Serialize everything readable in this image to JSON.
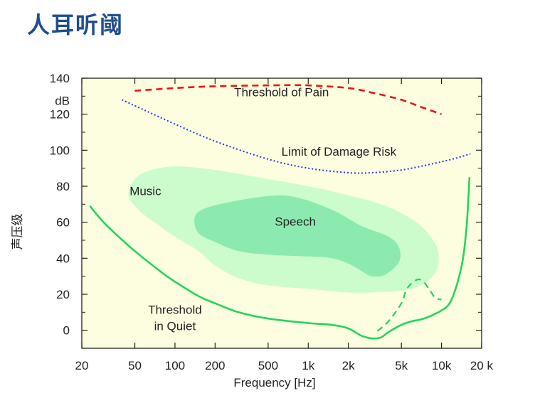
{
  "page": {
    "title": "人耳听阈"
  },
  "chart_data": {
    "type": "area",
    "title": "",
    "xlabel": "Frequency [Hz]",
    "ylabel": "声压级",
    "yunit": "dB",
    "xscale": "log",
    "xlim": [
      20,
      20000
    ],
    "ylim": [
      -10,
      140
    ],
    "x_ticks": [
      {
        "value": 20,
        "label": "20"
      },
      {
        "value": 50,
        "label": "50"
      },
      {
        "value": 100,
        "label": "100"
      },
      {
        "value": 200,
        "label": "200"
      },
      {
        "value": 500,
        "label": "500"
      },
      {
        "value": 1000,
        "label": "1k"
      },
      {
        "value": 2000,
        "label": "2k"
      },
      {
        "value": 5000,
        "label": "5k"
      },
      {
        "value": 10000,
        "label": "10k"
      },
      {
        "value": 20000,
        "label": "20 k"
      }
    ],
    "y_ticks": [
      {
        "value": 0,
        "label": "0"
      },
      {
        "value": 20,
        "label": "20"
      },
      {
        "value": 40,
        "label": "40"
      },
      {
        "value": 60,
        "label": "60"
      },
      {
        "value": 80,
        "label": "80"
      },
      {
        "value": 100,
        "label": "100"
      },
      {
        "value": 120,
        "label": "120"
      },
      {
        "value": 140,
        "label": "140"
      }
    ],
    "background": "#fdfde0",
    "series": [
      {
        "name": "Threshold of Pain",
        "style": "dashed",
        "color": "#e8141c",
        "label_at": [
          630,
          130
        ],
        "points": [
          [
            50,
            133
          ],
          [
            100,
            134.5
          ],
          [
            200,
            135.5
          ],
          [
            500,
            136
          ],
          [
            1000,
            136
          ],
          [
            2000,
            134.5
          ],
          [
            3000,
            132
          ],
          [
            5000,
            128
          ],
          [
            7000,
            124
          ],
          [
            10000,
            120
          ]
        ]
      },
      {
        "name": "Limit of Damage Risk",
        "style": "dotted",
        "color": "#1c3ce8",
        "label_at": [
          1700,
          97
        ],
        "points": [
          [
            40,
            128
          ],
          [
            60,
            122
          ],
          [
            100,
            114.5
          ],
          [
            200,
            105
          ],
          [
            500,
            95
          ],
          [
            1000,
            90
          ],
          [
            2000,
            87.5
          ],
          [
            3000,
            87.5
          ],
          [
            5000,
            89
          ],
          [
            8000,
            92
          ],
          [
            12000,
            95
          ],
          [
            16500,
            98
          ]
        ]
      },
      {
        "name": "Threshold in Quiet",
        "style": "solid",
        "color": "#22d460",
        "label_at": [
          100,
          10
        ],
        "points": [
          [
            23,
            69
          ],
          [
            30,
            59
          ],
          [
            50,
            44
          ],
          [
            80,
            32
          ],
          [
            100,
            27
          ],
          [
            150,
            19
          ],
          [
            200,
            15
          ],
          [
            300,
            10
          ],
          [
            500,
            6.5
          ],
          [
            1000,
            4
          ],
          [
            1500,
            3
          ],
          [
            2000,
            1
          ],
          [
            2500,
            -3
          ],
          [
            3000,
            -4.5
          ],
          [
            3500,
            -4
          ],
          [
            4000,
            -1
          ],
          [
            5000,
            3
          ],
          [
            6000,
            5
          ],
          [
            7000,
            6
          ],
          [
            8000,
            7.5
          ],
          [
            10000,
            11
          ],
          [
            11500,
            15
          ],
          [
            13000,
            25
          ],
          [
            14500,
            40
          ],
          [
            15500,
            60
          ],
          [
            16200,
            85
          ]
        ]
      },
      {
        "name": "",
        "style": "dashed",
        "color": "#22d460",
        "points": [
          [
            3300,
            -0.5
          ],
          [
            4000,
            5
          ],
          [
            5000,
            15
          ],
          [
            5500,
            23
          ],
          [
            6500,
            28
          ],
          [
            7300,
            27
          ],
          [
            8200,
            22
          ],
          [
            9000,
            18
          ],
          [
            10000,
            17
          ]
        ]
      }
    ],
    "regions": [
      {
        "name": "Music",
        "color": "#ccfccc",
        "label_at": [
          60,
          75
        ],
        "points": [
          [
            45,
            74
          ],
          [
            48,
            82
          ],
          [
            60,
            88
          ],
          [
            100,
            91
          ],
          [
            200,
            89
          ],
          [
            500,
            84
          ],
          [
            1000,
            80
          ],
          [
            2000,
            75
          ],
          [
            3500,
            70
          ],
          [
            5000,
            65
          ],
          [
            7000,
            58
          ],
          [
            9000,
            48
          ],
          [
            9500,
            40
          ],
          [
            9000,
            32
          ],
          [
            7000,
            25
          ],
          [
            5000,
            22
          ],
          [
            3000,
            21
          ],
          [
            2000,
            21
          ],
          [
            1000,
            23
          ],
          [
            500,
            25
          ],
          [
            300,
            29
          ],
          [
            200,
            36
          ],
          [
            150,
            44
          ],
          [
            100,
            52
          ],
          [
            70,
            60
          ],
          [
            55,
            66
          ]
        ]
      },
      {
        "name": "Speech",
        "color": "#8ceab0",
        "label_at": [
          800,
          58
        ],
        "points": [
          [
            140,
            62
          ],
          [
            160,
            67
          ],
          [
            250,
            71
          ],
          [
            500,
            74.5
          ],
          [
            800,
            74
          ],
          [
            1500,
            67
          ],
          [
            2500,
            58
          ],
          [
            4000,
            52
          ],
          [
            4800,
            46
          ],
          [
            4800,
            38
          ],
          [
            3800,
            31
          ],
          [
            3000,
            30
          ],
          [
            2500,
            33
          ],
          [
            2000,
            37
          ],
          [
            1500,
            40
          ],
          [
            1000,
            41
          ],
          [
            500,
            42
          ],
          [
            300,
            44
          ],
          [
            200,
            49
          ],
          [
            150,
            54
          ]
        ]
      }
    ]
  }
}
